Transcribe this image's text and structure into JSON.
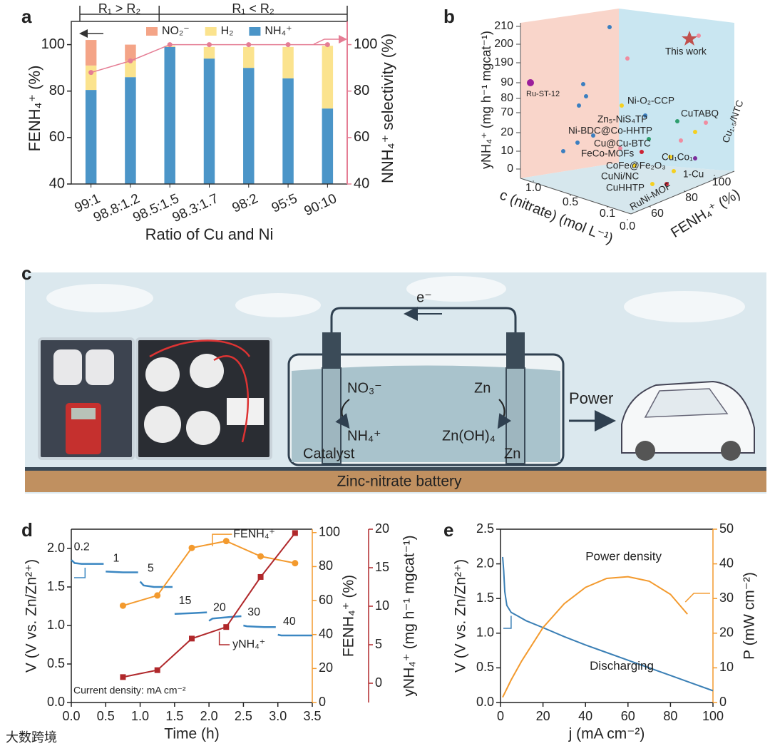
{
  "panels": [
    "a",
    "b",
    "c",
    "d",
    "e"
  ],
  "watermark": "大数跨境",
  "chart_data": [
    {
      "type": "bar",
      "stacked": true,
      "categories": [
        "99:1",
        "98.8:1.2",
        "98.5:1.5",
        "98.3:1.7",
        "98:2",
        "95:5",
        "90:10"
      ],
      "series": [
        {
          "name": "NH₄⁺",
          "color": "#4b95c8",
          "values": [
            80.5,
            86,
            99,
            94,
            90,
            85.5,
            72.5
          ]
        },
        {
          "name": "H₂",
          "color": "#fbe38e",
          "values": [
            10.5,
            7,
            0.5,
            5,
            9,
            13.5,
            27
          ]
        },
        {
          "name": "NO₂⁻",
          "color": "#f4a487",
          "values": [
            11,
            7,
            0,
            0,
            0,
            0,
            0
          ]
        }
      ],
      "line": {
        "axis": "y2",
        "color": "#e57d94",
        "values": [
          88,
          93,
          100,
          100,
          100,
          100,
          100
        ]
      },
      "annotations": [
        "R₁ > R₂",
        "R₁ < R₂"
      ],
      "xlabel": "Ratio of Cu and Ni",
      "ylabel": "FENH₄⁺ (%)",
      "y2label": "NNH₄⁺ selectivity (%)",
      "ylim": [
        40,
        110
      ],
      "yticks": [
        40,
        60,
        80,
        100
      ],
      "y2lim": [
        40,
        110
      ],
      "y2ticks": [
        40,
        60,
        80,
        100
      ]
    },
    {
      "type": "scatter3d",
      "labels": [
        "This work",
        "Ru-ST-12",
        "Ni-O₂-CCP",
        "Zn₅-NiS₄TP",
        "CuTABQ",
        "Ni-BDC@Co-HHTP",
        "Cu@Cu-BTC",
        "FeCo-MOFs",
        "Cu₁Co₁",
        "Cu₁.₅/NTC",
        "CoFe@Fe₂O₃",
        "CuNi/NC",
        "1-Cu",
        "CuHHTP",
        "RuNi-MOF"
      ],
      "xlabel": "c (nitrate) (mol L⁻¹)",
      "ylabel": "yNH₄⁺ (mg h⁻¹ mgcat⁻¹)",
      "zlabel": "FENH₄⁺ (%)",
      "xticks": [
        {
          "value": 1,
          "label": "1.0"
        },
        0.5,
        0.1,
        {
          "value": 0,
          "label": "0.0"
        }
      ],
      "yticks": [
        0,
        10,
        20,
        70,
        80,
        90,
        190,
        200,
        210
      ],
      "zticks": [
        60,
        80,
        100
      ]
    },
    {
      "type": "line",
      "xlabel": "Time (h)",
      "ylabel": "V (V vs. Zn/Zn²⁺)",
      "y2label": "FENH₄⁺ (%)",
      "y3label": "yNH₄⁺ (mg h⁻¹ mgcat⁻¹)",
      "xlim": [
        0,
        3.5
      ],
      "xticks": [
        {
          "value": 0,
          "label": "0.0"
        },
        0.5,
        {
          "value": 1,
          "label": "1.0"
        },
        1.5,
        {
          "value": 2,
          "label": "2.0"
        },
        2.5,
        {
          "value": 3,
          "label": "3.0"
        },
        3.5
      ],
      "ylim": [
        0,
        2.25
      ],
      "yticks": [
        {
          "value": 0,
          "label": "0.0"
        },
        0.5,
        {
          "value": 1,
          "label": "1.0"
        },
        1.5,
        {
          "value": 2,
          "label": "2.0"
        }
      ],
      "y2lim": [
        0,
        102
      ],
      "y2ticks": [
        0,
        20,
        40,
        60,
        80,
        100
      ],
      "y3lim": [
        -2.5,
        20
      ],
      "y3ticks": [
        0,
        5,
        10,
        15,
        20
      ],
      "voltage": {
        "color": "#3b87c2",
        "segments": [
          {
            "label": 0.2,
            "x": [
              0,
              0.05,
              0.15,
              0.47
            ],
            "values": [
              1.85,
              1.81,
              1.8,
              1.8
            ]
          },
          {
            "label": 1,
            "x": [
              0.5,
              0.75,
              0.97
            ],
            "values": [
              1.7,
              1.69,
              1.69
            ]
          },
          {
            "label": 5,
            "x": [
              1.0,
              1.05,
              1.2,
              1.47
            ],
            "values": [
              1.57,
              1.52,
              1.5,
              1.5
            ]
          },
          {
            "label": 15,
            "x": [
              1.5,
              1.75,
              1.97
            ],
            "values": [
              1.15,
              1.16,
              1.17
            ]
          },
          {
            "label": 20,
            "x": [
              2.0,
              2.05,
              2.3,
              2.47
            ],
            "values": [
              1.06,
              1.09,
              1.11,
              1.12
            ]
          },
          {
            "label": 30,
            "x": [
              2.5,
              2.55,
              2.8,
              2.97
            ],
            "values": [
              1.0,
              0.99,
              0.98,
              0.98
            ]
          },
          {
            "label": 40,
            "x": [
              3.0,
              3.05,
              3.5
            ],
            "values": [
              0.88,
              0.87,
              0.87
            ]
          }
        ]
      },
      "series": [
        {
          "name": "FENH₄⁺",
          "axis": "y2",
          "color": "#f39a2e",
          "x": [
            0.75,
            1.25,
            1.75,
            2.25,
            2.75,
            3.25
          ],
          "values": [
            57,
            63,
            91,
            95,
            86,
            82
          ]
        },
        {
          "name": "yNH₄⁺",
          "axis": "y3",
          "color": "#b0282b",
          "x": [
            0.75,
            1.25,
            1.75,
            2.25,
            2.75,
            3.25
          ],
          "values": [
            0.8,
            1.7,
            5.8,
            7.3,
            13.8,
            19.5
          ]
        }
      ],
      "annotations": [
        "Current density: mA cm⁻²"
      ]
    },
    {
      "type": "line",
      "xlabel": "j (mA cm⁻²)",
      "ylabel": "V (V vs. Zn/Zn²⁺)",
      "y2label": "P (mW cm⁻²)",
      "xlim": [
        0,
        100
      ],
      "xticks": [
        0,
        20,
        40,
        60,
        80,
        100
      ],
      "ylim": [
        0,
        2.5
      ],
      "yticks": [
        {
          "value": 0,
          "label": "0.0"
        },
        0.5,
        {
          "value": 1,
          "label": "1.0"
        },
        1.5,
        {
          "value": 2,
          "label": "2.0"
        },
        2.5
      ],
      "y2lim": [
        0,
        50
      ],
      "y2ticks": [
        0,
        10,
        20,
        30,
        40,
        50
      ],
      "series": [
        {
          "name": "Discharging",
          "color": "#3a7fb5",
          "x": [
            1,
            1.5,
            2,
            3,
            5,
            8,
            12,
            20,
            30,
            40,
            50,
            60,
            70,
            80,
            90,
            100
          ],
          "values": [
            2.1,
            1.9,
            1.6,
            1.4,
            1.3,
            1.25,
            1.18,
            1.08,
            0.95,
            0.83,
            0.72,
            0.61,
            0.5,
            0.39,
            0.28,
            0.17
          ]
        },
        {
          "name": "Power density",
          "axis": "y2",
          "color": "#f39a2e",
          "x": [
            1,
            5,
            10,
            20,
            30,
            40,
            50,
            60,
            70,
            80,
            88
          ],
          "values": [
            1.5,
            6.5,
            12,
            21.6,
            28.5,
            33.2,
            35.8,
            36.3,
            35,
            31.2,
            25.5
          ]
        }
      ]
    }
  ],
  "diagram": {
    "electron": "e⁻",
    "left": {
      "reactant": "NO₃⁻",
      "product": "NH₄⁺",
      "electrode": "Catalyst"
    },
    "right": {
      "reactant": "Zn",
      "product": "Zn(OH)₄",
      "electrode": "Zn"
    },
    "output": "Power",
    "caption": "Zinc-nitrate battery"
  }
}
